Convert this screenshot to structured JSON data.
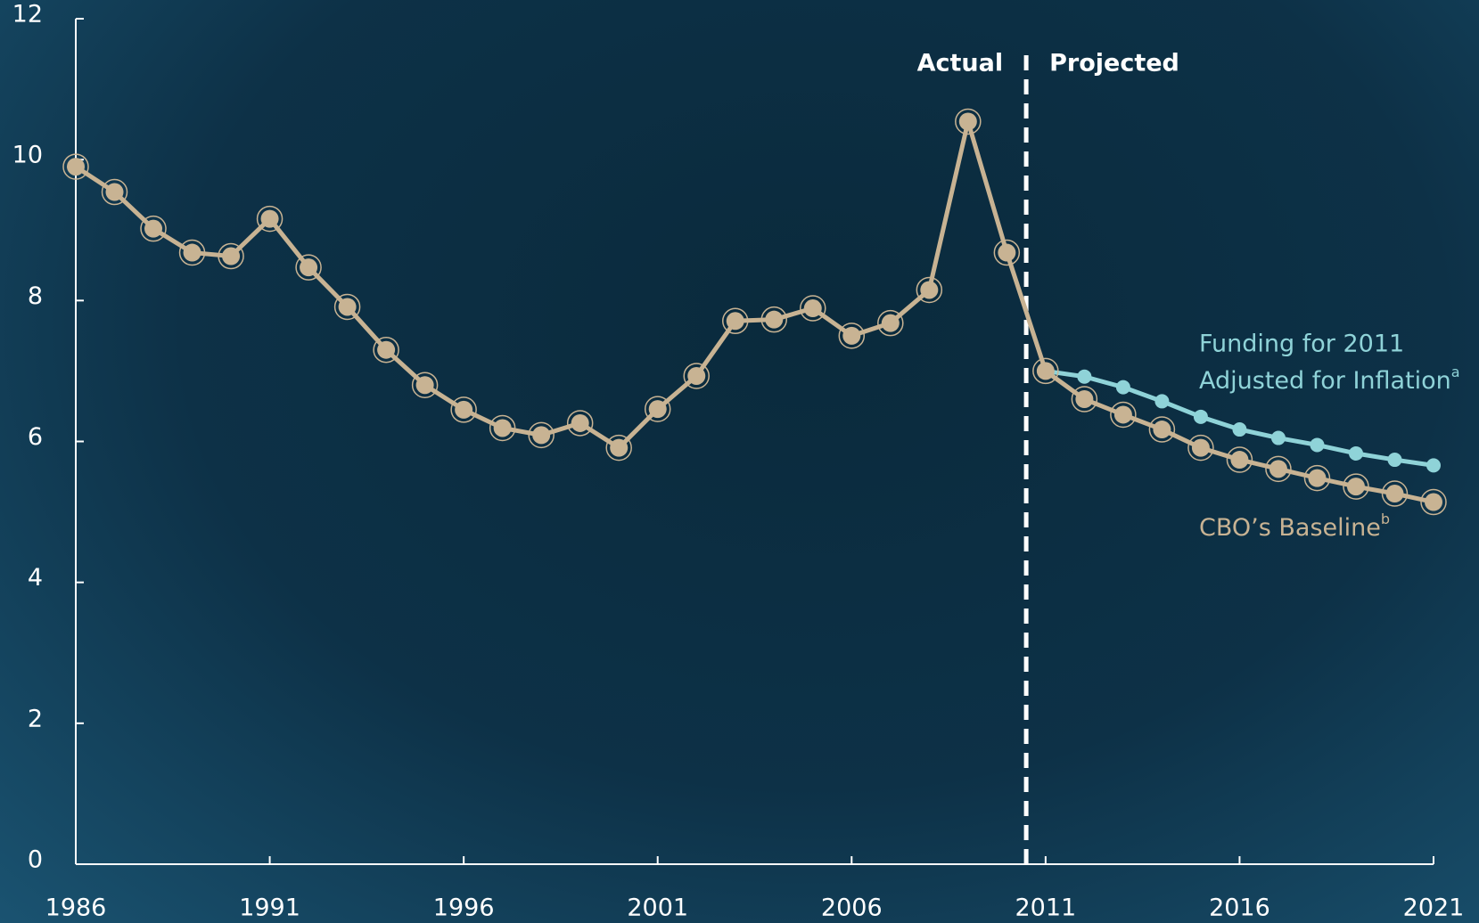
{
  "chart_data": {
    "type": "line",
    "x": [
      1986,
      1987,
      1988,
      1989,
      1990,
      1991,
      1992,
      1993,
      1994,
      1995,
      1996,
      1997,
      1998,
      1999,
      2000,
      2001,
      2002,
      2003,
      2004,
      2005,
      2006,
      2007,
      2008,
      2009,
      2010,
      2011,
      2012,
      2013,
      2014,
      2015,
      2016,
      2017,
      2018,
      2019,
      2020,
      2021
    ],
    "series": [
      {
        "name": "CBO’s Baseline",
        "footnote": "b",
        "color": "#c8b393",
        "values": [
          9.9,
          9.54,
          9.02,
          8.68,
          8.63,
          9.16,
          8.47,
          7.91,
          7.3,
          6.8,
          6.45,
          6.19,
          6.09,
          6.26,
          5.91,
          6.46,
          6.93,
          7.71,
          7.73,
          7.89,
          7.5,
          7.68,
          8.15,
          10.54,
          8.68,
          7.0,
          6.6,
          6.38,
          6.17,
          5.91,
          5.74,
          5.61,
          5.48,
          5.36,
          5.26,
          5.14
        ]
      },
      {
        "name": [
          "Funding for 2011",
          "Adjusted for Inflation"
        ],
        "footnote": "a",
        "color": "#8fd3d8",
        "values": [
          null,
          null,
          null,
          null,
          null,
          null,
          null,
          null,
          null,
          null,
          null,
          null,
          null,
          null,
          null,
          null,
          null,
          null,
          null,
          null,
          null,
          null,
          null,
          null,
          null,
          7.0,
          6.92,
          6.77,
          6.57,
          6.35,
          6.17,
          6.05,
          5.95,
          5.83,
          5.74,
          5.66
        ]
      }
    ],
    "divider_x": 2010.5,
    "divider_labels": [
      "Actual",
      "Projected"
    ],
    "xlim": [
      1986,
      2021
    ],
    "xticks": [
      1986,
      1991,
      1996,
      2001,
      2006,
      2011,
      2016,
      2021
    ],
    "ylim": [
      0,
      12
    ],
    "yticks": [
      0,
      2,
      4,
      6,
      8,
      10,
      12
    ]
  }
}
